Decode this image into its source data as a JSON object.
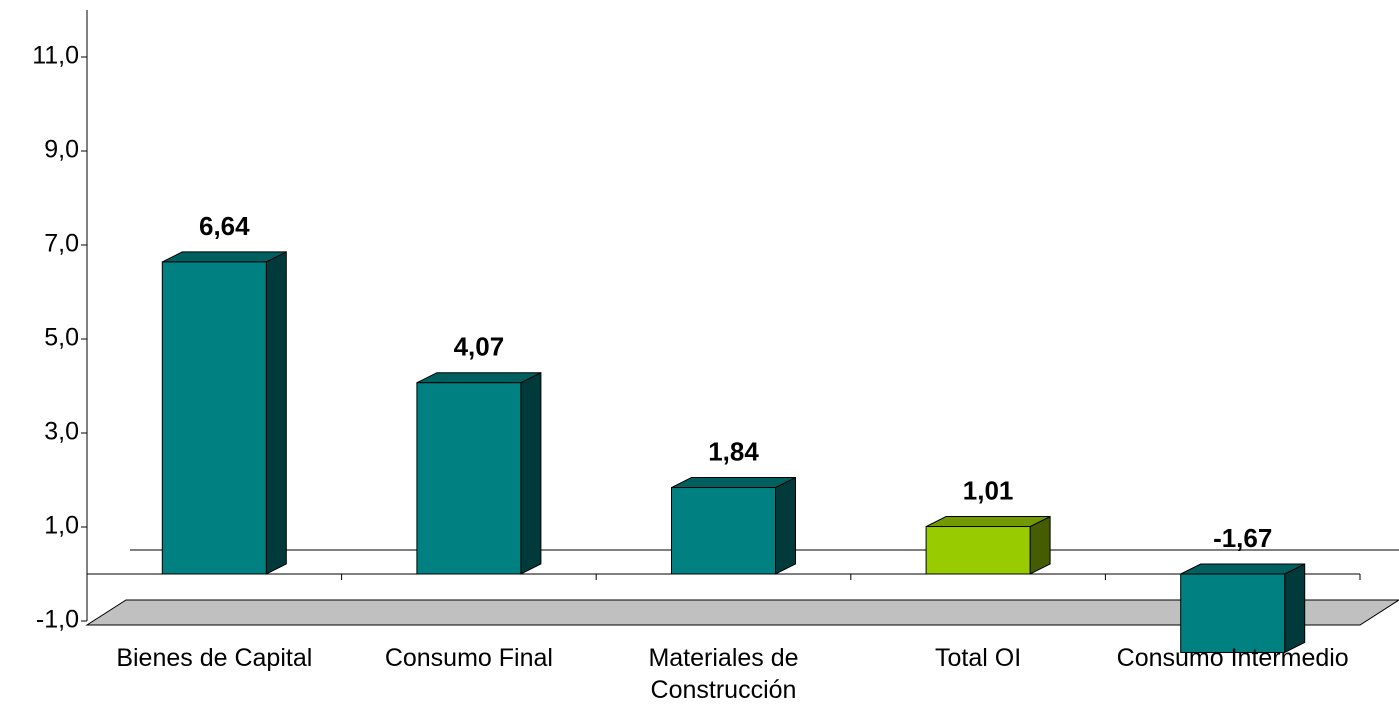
{
  "chart_data": {
    "type": "bar",
    "categories": [
      "Bienes de Capital",
      "Consumo Final",
      "Materiales de Construcción",
      "Total OI",
      "Consumo Intermedio"
    ],
    "values": [
      6.64,
      4.07,
      1.84,
      1.01,
      -1.67
    ],
    "value_labels": [
      "6,64",
      "4,07",
      "1,84",
      "1,01",
      "-1,67"
    ],
    "colors": [
      "#008080",
      "#008080",
      "#008080",
      "#99cc00",
      "#008080"
    ],
    "ylim": [
      -1,
      12
    ],
    "yticks": [
      {
        "value": -1,
        "label": "-1,0"
      },
      {
        "value": 1,
        "label": "1,0"
      },
      {
        "value": 3,
        "label": "3,0"
      },
      {
        "value": 5,
        "label": "5,0"
      },
      {
        "value": 7,
        "label": "7,0"
      },
      {
        "value": 9,
        "label": "9,0"
      },
      {
        "value": 11,
        "label": "11,0"
      }
    ]
  }
}
